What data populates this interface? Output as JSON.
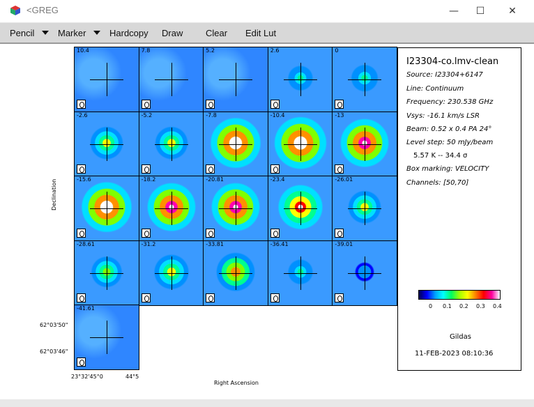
{
  "window": {
    "title": "<GREG",
    "minimize_glyph": "—",
    "maximize_glyph": "☐",
    "close_glyph": "✕"
  },
  "menu": {
    "pencil": "Pencil",
    "marker": "Marker",
    "hardcopy": "Hardcopy",
    "draw": "Draw",
    "clear": "Clear",
    "edit_lut": "Edit Lut"
  },
  "channels": [
    {
      "label": "10.4",
      "peak": 0.0
    },
    {
      "label": "7.8",
      "peak": 0.0
    },
    {
      "label": "5.2",
      "peak": 0.0
    },
    {
      "label": "2.6",
      "peak": 0.12
    },
    {
      "label": "0",
      "peak": 0.14
    },
    {
      "label": "-2.6",
      "peak": 0.2
    },
    {
      "label": "-5.2",
      "peak": 0.2
    },
    {
      "label": "-7.8",
      "peak": 0.38
    },
    {
      "label": "-10.4",
      "peak": 0.4
    },
    {
      "label": "-13",
      "peak": 0.36
    },
    {
      "label": "-15.6",
      "peak": 0.38
    },
    {
      "label": "-18.2",
      "peak": 0.36
    },
    {
      "label": "-20.81",
      "peak": 0.36
    },
    {
      "label": "-23.4",
      "peak": 0.32
    },
    {
      "label": "-26.01",
      "peak": 0.2
    },
    {
      "label": "-28.61",
      "peak": 0.18
    },
    {
      "label": "-31.2",
      "peak": 0.22
    },
    {
      "label": "-33.81",
      "peak": 0.26
    },
    {
      "label": "-36.41",
      "peak": 0.12
    },
    {
      "label": "-39.01",
      "peak": 0.06
    },
    {
      "label": "-41.61",
      "peak": 0.0
    }
  ],
  "axes": {
    "ylabel": "Declination",
    "xlabel": "Right Ascension",
    "ytick_1": "62°03'50\"",
    "ytick_2": "62°03'46\"",
    "xtick_1": "23°32'45°0",
    "xtick_2": "44°5"
  },
  "info": {
    "name": "I23304-co.lmv-clean",
    "source": "Source: I23304+6147",
    "line": "Line: Continuum",
    "frequency": "Frequency: 230.538 GHz",
    "vsys": "Vsys: -16.1 km/s LSR",
    "beam": "Beam: 0.52 x 0.4 PA 24°",
    "level_step": "Level step: 50 mJy/beam",
    "level_k": "5.57 K   --   34.4 σ",
    "box_marking": "Box marking: VELOCITY",
    "channels": "Channels: [50,70]",
    "lut_ticks": [
      "0",
      "0.1",
      "0.2",
      "0.3",
      "0.4"
    ],
    "software": "Gildas",
    "timestamp": "11-FEB-2023 08:10:36"
  },
  "colors": {
    "background_map": "#2b8cff",
    "contour": "#000000"
  }
}
